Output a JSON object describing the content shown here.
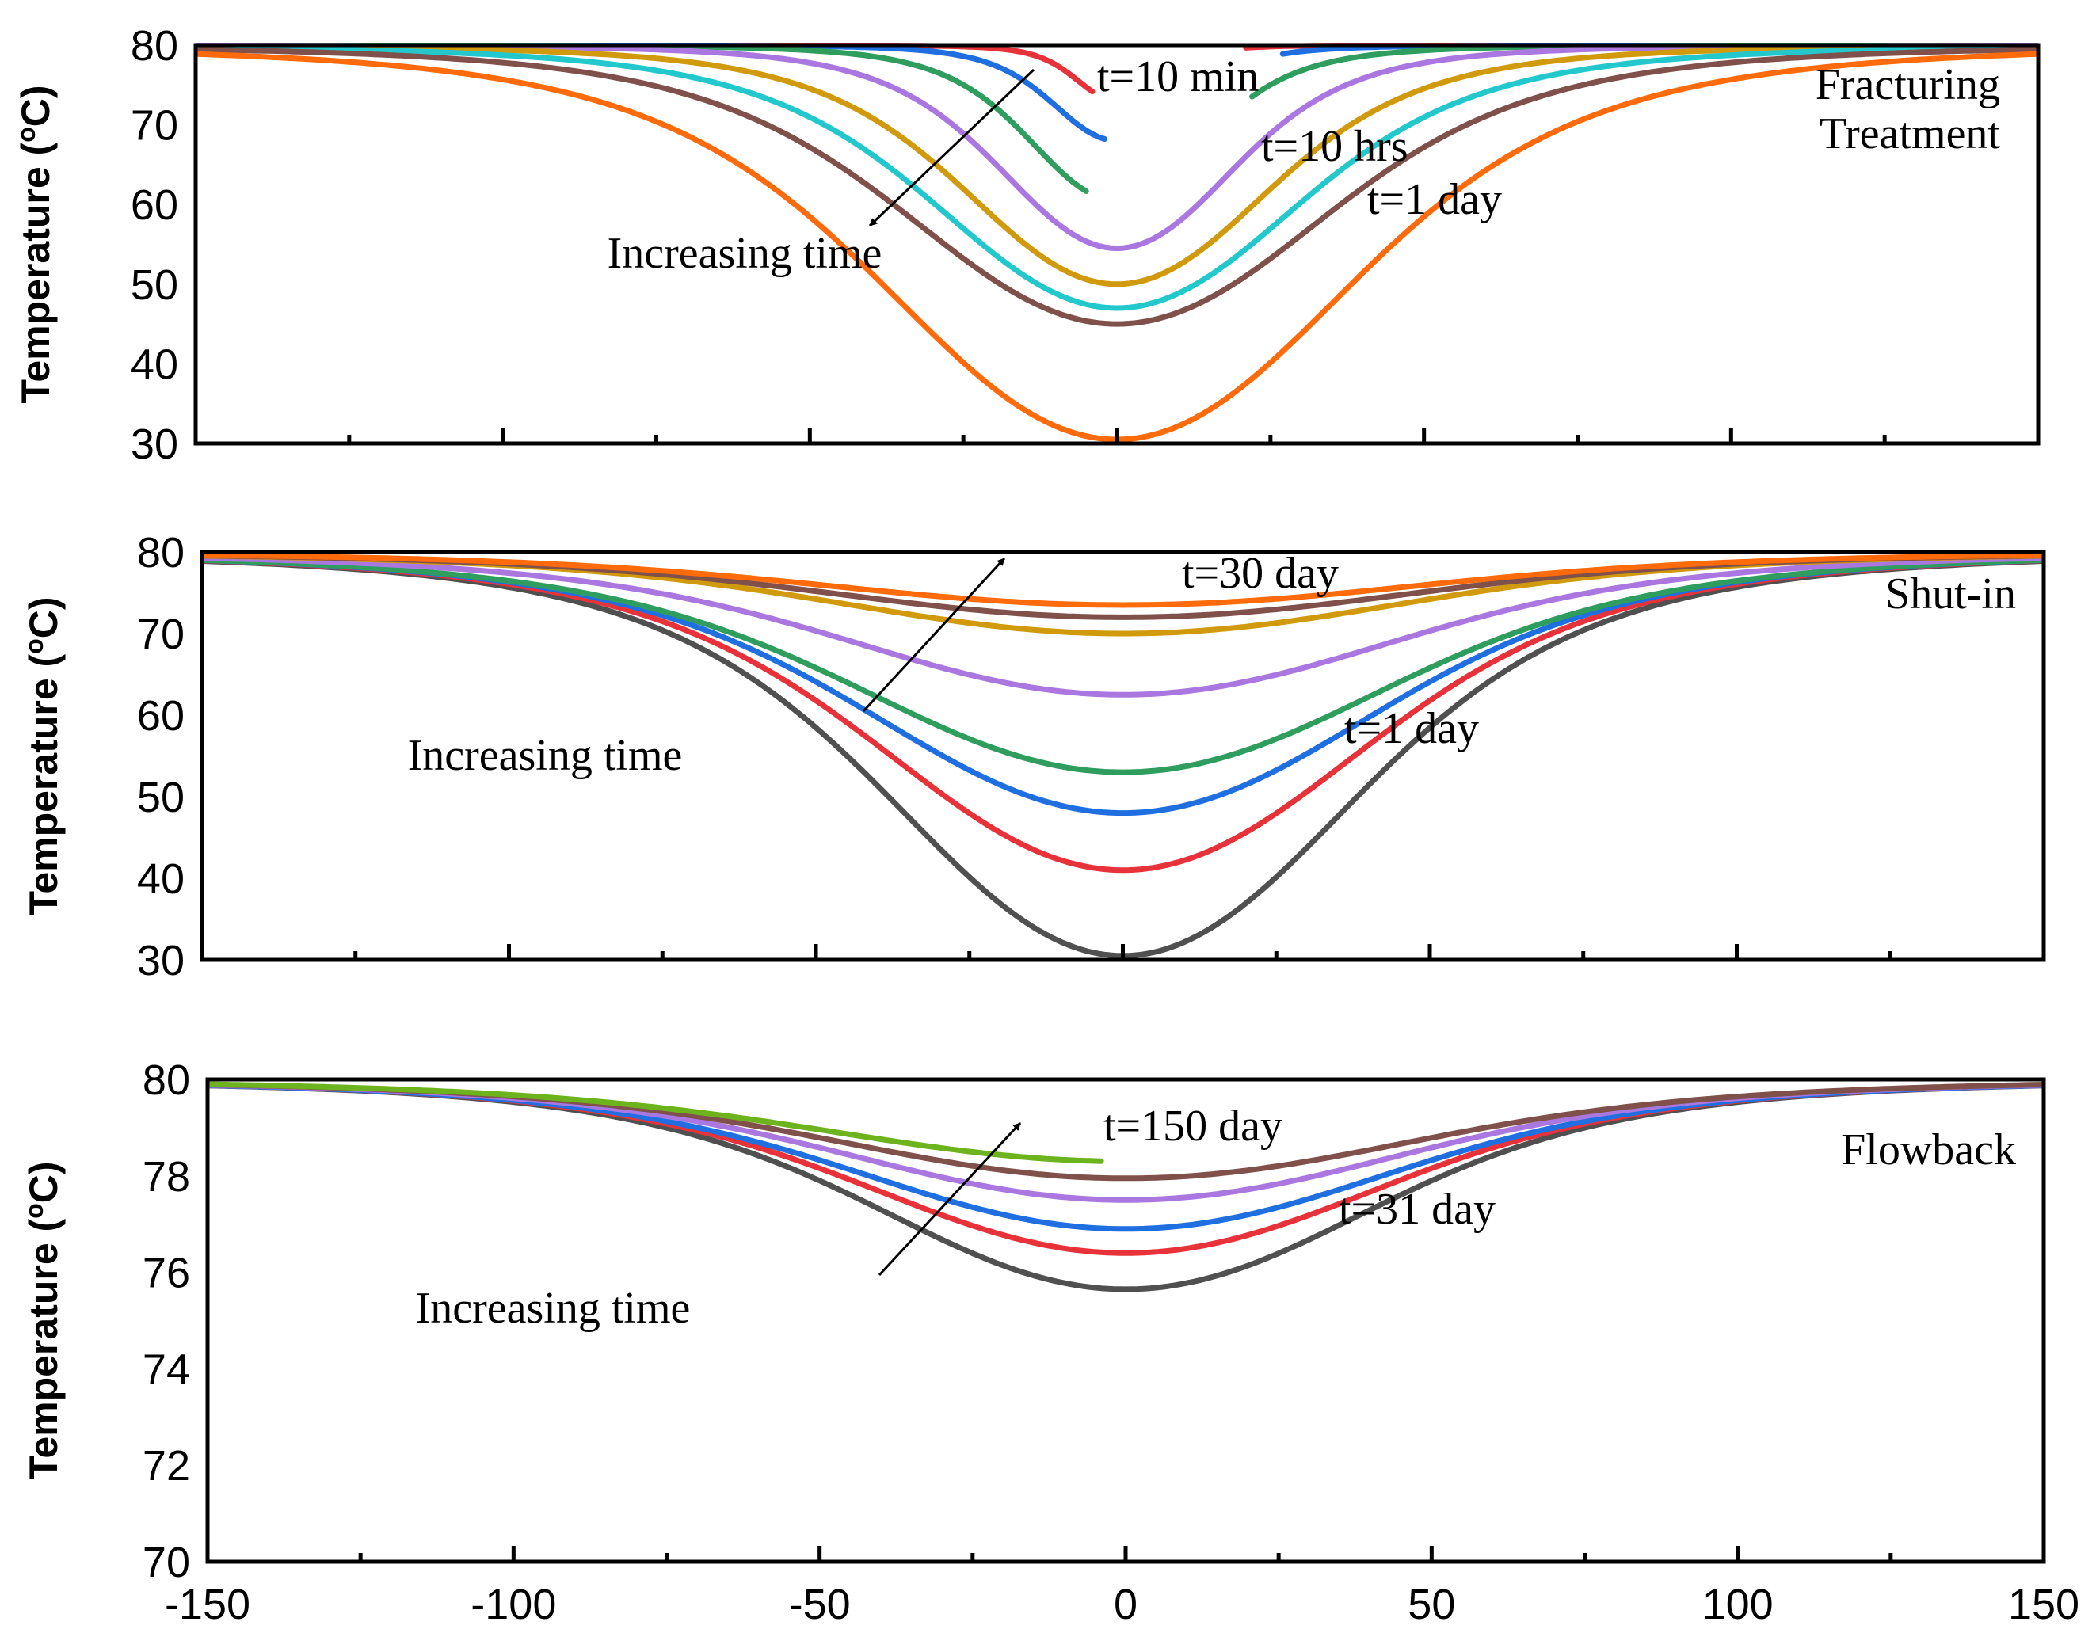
{
  "chart_data": [
    {
      "type": "line",
      "panel_label": "Fracturing\nTreatment",
      "panel_label_lines": [
        "Fracturing",
        "Treatment"
      ],
      "ylabel_prefix": "Temperature (",
      "ylabel_sup": "o",
      "ylabel_suffix": "C)",
      "xlim": [
        -150,
        150
      ],
      "ylim": [
        30,
        80
      ],
      "yticks": [
        30,
        40,
        50,
        60,
        70,
        80
      ],
      "xticks": [
        -150,
        -100,
        -50,
        0,
        50,
        100,
        150
      ],
      "show_xtick_labels": false,
      "annotations": {
        "arrow_text": "Increasing time",
        "first_label": "t=10 min",
        "mid_label": "t=10 hrs",
        "last_label": "t=1 day"
      },
      "series": [
        {
          "name": "t=10 min",
          "color": "#e8323a",
          "min": 73,
          "width": 7,
          "gap": [
            -4,
            21
          ]
        },
        {
          "name": "",
          "color": "#1f6fe0",
          "min": 68,
          "width": 11,
          "gap": [
            -2,
            27
          ]
        },
        {
          "name": "",
          "color": "#2e9d5d",
          "min": 60.5,
          "width": 15,
          "gap": [
            -5,
            22
          ]
        },
        {
          "name": "",
          "color": "#aa77e0",
          "min": 54.5,
          "width": 20
        },
        {
          "name": "t=10 hrs",
          "color": "#d09a0c",
          "min": 50,
          "width": 26
        },
        {
          "name": "",
          "color": "#22c8cc",
          "min": 47,
          "width": 31
        },
        {
          "name": "",
          "color": "#80504a",
          "min": 45,
          "width": 36
        },
        {
          "name": "t=1 day",
          "color": "#ff6a0a",
          "min": 30.5,
          "width": 40
        }
      ]
    },
    {
      "type": "line",
      "panel_label": "Shut-in",
      "panel_label_lines": [
        "Shut-in"
      ],
      "ylabel_prefix": "Temperature (",
      "ylabel_sup": "o",
      "ylabel_suffix": "C)",
      "xlim": [
        -150,
        150
      ],
      "ylim": [
        30,
        80
      ],
      "yticks": [
        30,
        40,
        50,
        60,
        70,
        80
      ],
      "xticks": [
        -150,
        -100,
        -50,
        0,
        50,
        100,
        150
      ],
      "show_xtick_labels": false,
      "annotations": {
        "arrow_text": "Increasing time",
        "first_label": "t=1 day",
        "last_label": "t=30 day"
      },
      "series": [
        {
          "name": "t=1 day",
          "color": "#505050",
          "min": 30.5,
          "width": 40
        },
        {
          "name": "",
          "color": "#e8323a",
          "min": 41,
          "width": 42
        },
        {
          "name": "",
          "color": "#1f6fe0",
          "min": 48,
          "width": 44
        },
        {
          "name": "",
          "color": "#2e9d5d",
          "min": 53,
          "width": 46
        },
        {
          "name": "",
          "color": "#aa77e0",
          "min": 62.5,
          "width": 48
        },
        {
          "name": "",
          "color": "#d09a0c",
          "min": 70,
          "width": 50
        },
        {
          "name": "",
          "color": "#80504a",
          "min": 72,
          "width": 52
        },
        {
          "name": "t=30 day",
          "color": "#ff6a0a",
          "min": 73.5,
          "width": 53
        }
      ]
    },
    {
      "type": "line",
      "panel_label": "Flowback",
      "panel_label_lines": [
        "Flowback"
      ],
      "ylabel_prefix": "Temperature (",
      "ylabel_sup": "o",
      "ylabel_suffix": "C)",
      "xlim": [
        -150,
        150
      ],
      "ylim": [
        70,
        80
      ],
      "yticks": [
        70,
        72,
        74,
        76,
        78,
        80
      ],
      "xticks": [
        -150,
        -100,
        -50,
        0,
        50,
        100,
        150
      ],
      "show_xtick_labels": true,
      "annotations": {
        "arrow_text": "Increasing time",
        "first_label": "t=31 day",
        "last_label": "t=150 day"
      },
      "series": [
        {
          "name": "t=31 day",
          "color": "#505050",
          "min": 75.65,
          "width": 43
        },
        {
          "name": "",
          "color": "#e8323a",
          "min": 76.4,
          "width": 45
        },
        {
          "name": "",
          "color": "#1f6fe0",
          "min": 76.9,
          "width": 47
        },
        {
          "name": "",
          "color": "#aa77e0",
          "min": 77.5,
          "width": 49
        },
        {
          "name": "",
          "color": "#80504a",
          "min": 77.95,
          "width": 51
        },
        {
          "name": "t=150 day",
          "color": "#6cb31e",
          "min": 78.3,
          "width": 53,
          "gap": [
            -4,
            200
          ]
        }
      ]
    }
  ]
}
